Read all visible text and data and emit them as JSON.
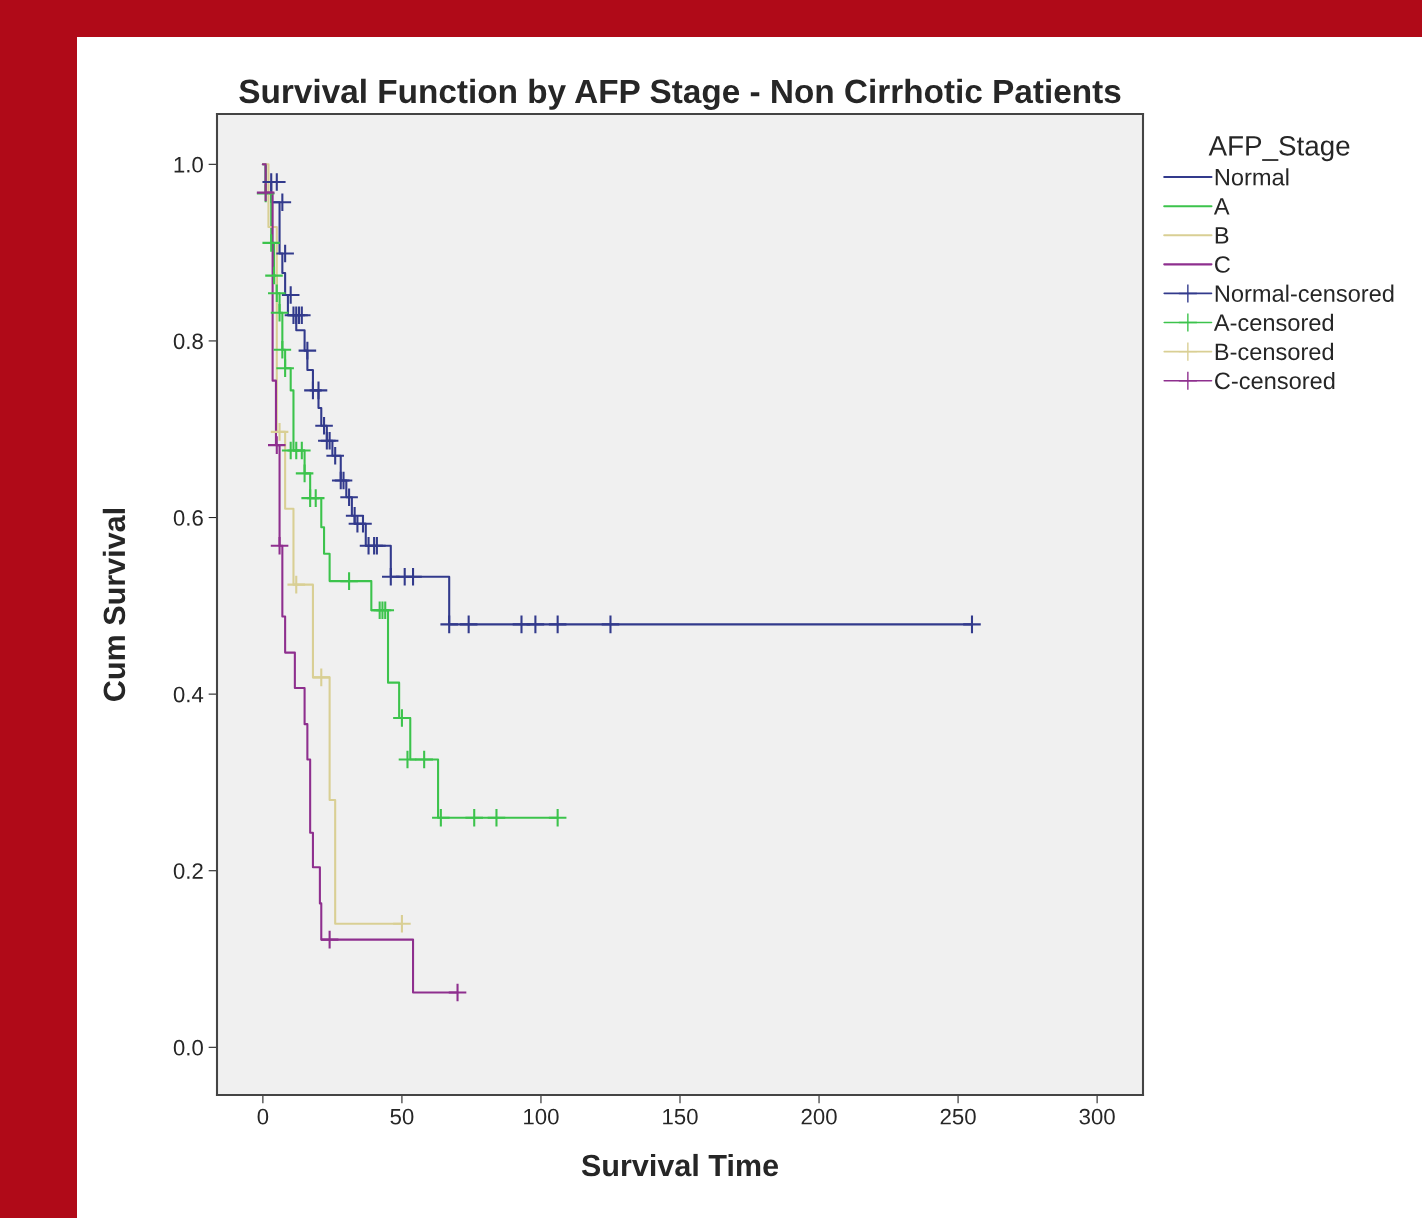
{
  "chart_data": {
    "type": "step",
    "title": "Survival Function by AFP Stage - Non Cirrhotic Patients",
    "xlabel": "Survival Time",
    "ylabel": "Cum Survival",
    "legend_title": "AFP_Stage",
    "series": [
      {
        "name": "Normal",
        "color": "#323a8c",
        "x": [
          0,
          1,
          3,
          6,
          7,
          8,
          9,
          12,
          15,
          16,
          18,
          20,
          21,
          23,
          25,
          28,
          30,
          32,
          33,
          37,
          46,
          67,
          255
        ],
        "values": [
          1.0,
          0.98,
          0.957,
          0.899,
          0.877,
          0.852,
          0.829,
          0.812,
          0.789,
          0.767,
          0.744,
          0.724,
          0.704,
          0.687,
          0.67,
          0.642,
          0.623,
          0.602,
          0.593,
          0.568,
          0.533,
          0.479,
          0.479
        ]
      },
      {
        "name": "A",
        "color": "#3cc34c",
        "x": [
          0,
          1,
          3,
          4,
          5,
          6,
          7,
          8,
          10,
          11,
          15,
          17,
          21,
          22,
          24,
          39,
          45,
          49,
          53,
          63,
          106
        ],
        "values": [
          1.0,
          0.967,
          0.911,
          0.874,
          0.854,
          0.832,
          0.79,
          0.769,
          0.744,
          0.676,
          0.65,
          0.622,
          0.589,
          0.559,
          0.528,
          0.495,
          0.413,
          0.373,
          0.326,
          0.26,
          0.26
        ]
      },
      {
        "name": "B",
        "color": "#d9cf94",
        "x": [
          0,
          2,
          5,
          8,
          11,
          18,
          24,
          26,
          50
        ],
        "values": [
          1.0,
          0.929,
          0.697,
          0.61,
          0.524,
          0.419,
          0.28,
          0.14,
          0.14
        ]
      },
      {
        "name": "C",
        "color": "#8e2f8e",
        "x": [
          0,
          1,
          3.5,
          4.7,
          6,
          7,
          8,
          11.5,
          15,
          16,
          17,
          18,
          20.5,
          21,
          54,
          70
        ],
        "values": [
          1.0,
          0.968,
          0.755,
          0.682,
          0.568,
          0.488,
          0.447,
          0.407,
          0.366,
          0.326,
          0.243,
          0.204,
          0.163,
          0.122,
          0.062,
          0.062
        ]
      },
      {
        "name": "Normal-censored",
        "type": "scatter",
        "marker": "cross",
        "color": "#323a8c",
        "x": [
          3,
          5,
          7,
          8,
          10,
          11,
          12,
          13,
          14,
          16,
          18,
          20,
          22,
          23,
          24,
          26,
          28,
          29,
          31,
          33,
          34,
          36,
          38,
          40,
          41,
          46,
          51,
          54,
          67,
          74,
          93,
          98,
          106,
          125,
          255
        ],
        "values": [
          0.98,
          0.98,
          0.957,
          0.899,
          0.852,
          0.829,
          0.829,
          0.829,
          0.829,
          0.789,
          0.744,
          0.744,
          0.704,
          0.687,
          0.687,
          0.67,
          0.642,
          0.642,
          0.623,
          0.602,
          0.593,
          0.593,
          0.568,
          0.568,
          0.568,
          0.533,
          0.533,
          0.533,
          0.479,
          0.479,
          0.479,
          0.479,
          0.479,
          0.479,
          0.479
        ]
      },
      {
        "name": "A-censored",
        "type": "scatter",
        "marker": "cross",
        "color": "#3cc34c",
        "x": [
          1,
          3,
          4,
          5,
          6,
          7,
          8,
          10,
          12,
          14,
          15,
          17,
          19,
          31,
          42,
          43,
          44,
          50,
          52,
          58,
          64,
          76,
          84,
          106
        ],
        "values": [
          0.967,
          0.911,
          0.874,
          0.854,
          0.832,
          0.79,
          0.769,
          0.676,
          0.676,
          0.676,
          0.65,
          0.622,
          0.622,
          0.528,
          0.495,
          0.495,
          0.495,
          0.373,
          0.326,
          0.326,
          0.26,
          0.26,
          0.26,
          0.26
        ]
      },
      {
        "name": "B-censored",
        "type": "scatter",
        "marker": "cross",
        "color": "#d9cf94",
        "x": [
          6,
          12,
          21,
          50
        ],
        "values": [
          0.697,
          0.524,
          0.419,
          0.14
        ]
      },
      {
        "name": "C-censored",
        "type": "scatter",
        "marker": "cross",
        "color": "#8e2f8e",
        "x": [
          1,
          5,
          6,
          24,
          70
        ],
        "values": [
          0.968,
          0.682,
          0.568,
          0.122,
          0.062
        ]
      }
    ],
    "xlim": [
      -16.5,
      316.5
    ],
    "xticks": [
      0,
      50,
      100,
      150,
      200,
      250,
      300
    ],
    "ylim": [
      -0.054,
      1.057
    ],
    "yticks": [
      {
        "value": 0,
        "label": "0.0"
      },
      {
        "value": 0.2,
        "label": "0.2"
      },
      {
        "value": 0.4,
        "label": "0.4"
      },
      {
        "value": 0.6,
        "label": "0.6"
      },
      {
        "value": 0.8,
        "label": "0.8"
      },
      {
        "value": 1.0,
        "label": "1.0"
      }
    ],
    "grid": false,
    "legend": "right"
  }
}
